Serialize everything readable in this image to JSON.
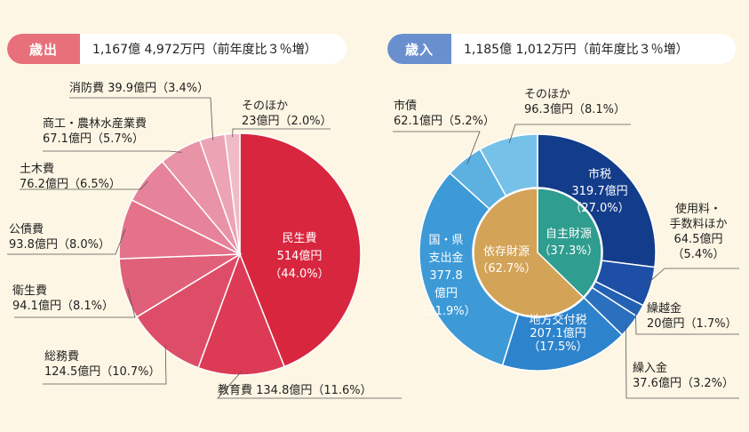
{
  "expenditure": {
    "tag": "歳出",
    "total": "1,167億 4,972万円（前年度比３％増）"
  },
  "revenue": {
    "tag": "歳入",
    "total": "1,185億 1,012万円（前年度比３％増）"
  },
  "chart_data": [
    {
      "type": "pie",
      "title": "歳出",
      "slices": [
        {
          "label": "民生費",
          "amount": "514億円",
          "percent": 44.0,
          "color": "#d8263f"
        },
        {
          "label": "教育費",
          "amount": "134.8億円",
          "percent": 11.6,
          "color": "#dc3a55"
        },
        {
          "label": "総務費",
          "amount": "124.5億円",
          "percent": 10.7,
          "color": "#de4d68"
        },
        {
          "label": "衛生費",
          "amount": "94.1億円",
          "percent": 8.1,
          "color": "#e0607a"
        },
        {
          "label": "公債費",
          "amount": "93.8億円",
          "percent": 8.0,
          "color": "#e3728a"
        },
        {
          "label": "土木費",
          "amount": "76.2億円",
          "percent": 6.5,
          "color": "#e6839a"
        },
        {
          "label": "商工・農林水産業費",
          "amount": "67.1億円",
          "percent": 5.7,
          "color": "#e993a7"
        },
        {
          "label": "消防費",
          "amount": "39.9億円",
          "percent": 3.4,
          "color": "#eca4b5"
        },
        {
          "label": "そのほか",
          "amount": "23億円",
          "percent": 2.0,
          "color": "#f0bac7"
        }
      ]
    },
    {
      "type": "pie",
      "title": "歳入",
      "inner": [
        {
          "label": "自主財源",
          "percent": 37.3,
          "color": "#2f9d8f"
        },
        {
          "label": "依存財源",
          "percent": 62.7,
          "color": "#d3a357"
        }
      ],
      "slices": [
        {
          "label": "市税",
          "amount": "319.7億円",
          "percent": 27.0,
          "color": "#133c8a"
        },
        {
          "label": "使用料・手数料ほか",
          "amount": "64.5億円",
          "percent": 5.4,
          "color": "#1c4fa5"
        },
        {
          "label": "繰越金",
          "amount": "20億円",
          "percent": 1.7,
          "color": "#2361b2"
        },
        {
          "label": "繰入金",
          "amount": "37.6億円",
          "percent": 3.2,
          "color": "#2a70bf"
        },
        {
          "label": "地方交付税",
          "amount": "207.1億円",
          "percent": 17.5,
          "color": "#2d83cc"
        },
        {
          "label": "国・県支出金",
          "amount": "377.8億円",
          "percent": 31.9,
          "color": "#3d9ad6"
        },
        {
          "label": "市債",
          "amount": "62.1億円",
          "percent": 5.2,
          "color": "#5cb1e0"
        },
        {
          "label": "そのほか",
          "amount": "96.3億円",
          "percent": 8.1,
          "color": "#76c1e8"
        }
      ]
    }
  ]
}
